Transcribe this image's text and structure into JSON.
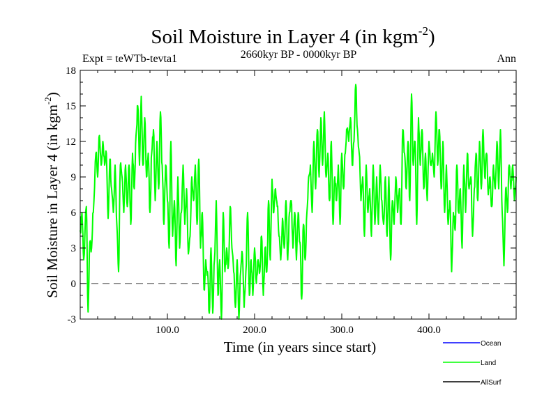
{
  "chart_data": {
    "type": "line",
    "title": "Soil Moisture in Layer 4 (in kgm",
    "title_sup": "-2",
    "title_close": ")",
    "subtitle": "2660kyr BP - 0000kyr BP",
    "expt_label": "Expt = teWTb-tevta1",
    "season_label": "Ann",
    "xlabel": "Time (in years since start)",
    "ylabel": "Soil Moisture in Layer 4 (in kgm",
    "ylabel_sup": "-2",
    "ylabel_close": ")",
    "xlim": [
      0,
      500
    ],
    "ylim": [
      -3,
      18
    ],
    "xticks": [
      100,
      200,
      300,
      400
    ],
    "xtick_labels": [
      "100.0",
      "200.0",
      "300.0",
      "400.0"
    ],
    "yticks": [
      -3,
      0,
      3,
      6,
      9,
      12,
      15,
      18
    ],
    "ytick_labels": [
      "-3",
      "0",
      "3",
      "6",
      "9",
      "12",
      "15",
      "18"
    ],
    "reference_line": 0,
    "legend": [
      {
        "name": "Ocean",
        "color": "#0000ff"
      },
      {
        "name": "Land",
        "color": "#00ff00"
      },
      {
        "name": "AllSurf",
        "color": "#000000"
      }
    ],
    "series": [
      {
        "name": "Land",
        "color": "#00ff00",
        "anchors": [
          [
            0,
            4.5
          ],
          [
            2,
            6
          ],
          [
            4,
            2
          ],
          [
            7,
            6.5
          ],
          [
            9,
            -2.4
          ],
          [
            11,
            3.5
          ],
          [
            13,
            3
          ],
          [
            15,
            6
          ],
          [
            18,
            11
          ],
          [
            20,
            9
          ],
          [
            22,
            12.5
          ],
          [
            24,
            10
          ],
          [
            26,
            12
          ],
          [
            28,
            10
          ],
          [
            30,
            11
          ],
          [
            32,
            5.5
          ],
          [
            34,
            10.5
          ],
          [
            36,
            8
          ],
          [
            38,
            6
          ],
          [
            40,
            10
          ],
          [
            42,
            5
          ],
          [
            44,
            1
          ],
          [
            46,
            10
          ],
          [
            48,
            9
          ],
          [
            50,
            6
          ],
          [
            52,
            10
          ],
          [
            54,
            6.5
          ],
          [
            56,
            10
          ],
          [
            58,
            5
          ],
          [
            60,
            11
          ],
          [
            62,
            8
          ],
          [
            64,
            12.5
          ],
          [
            66,
            15
          ],
          [
            68,
            10
          ],
          [
            70,
            15.8
          ],
          [
            72,
            10
          ],
          [
            74,
            14
          ],
          [
            76,
            9
          ],
          [
            78,
            11
          ],
          [
            80,
            6
          ],
          [
            82,
            11
          ],
          [
            84,
            13
          ],
          [
            86,
            7
          ],
          [
            88,
            12
          ],
          [
            90,
            8
          ],
          [
            92,
            14.5
          ],
          [
            94,
            10
          ],
          [
            96,
            5
          ],
          [
            98,
            10
          ],
          [
            100,
            7
          ],
          [
            102,
            3
          ],
          [
            104,
            12
          ],
          [
            106,
            4
          ],
          [
            108,
            7
          ],
          [
            110,
            1.5
          ],
          [
            112,
            9
          ],
          [
            114,
            3
          ],
          [
            116,
            6
          ],
          [
            118,
            10
          ],
          [
            120,
            5
          ],
          [
            122,
            8
          ],
          [
            124,
            2.5
          ],
          [
            126,
            4
          ],
          [
            128,
            9
          ],
          [
            130,
            7
          ],
          [
            132,
            10
          ],
          [
            134,
            5
          ],
          [
            136,
            10.5
          ],
          [
            138,
            3
          ],
          [
            140,
            6
          ],
          [
            142,
            -0.5
          ],
          [
            144,
            2
          ],
          [
            146,
            1
          ],
          [
            148,
            -2.5
          ],
          [
            150,
            3
          ],
          [
            152,
            -2.5
          ],
          [
            154,
            2
          ],
          [
            156,
            7
          ],
          [
            158,
            -1
          ],
          [
            160,
            2
          ],
          [
            162,
            -3
          ],
          [
            164,
            6
          ],
          [
            166,
            1
          ],
          [
            168,
            3
          ],
          [
            170,
            1.5
          ],
          [
            172,
            6.5
          ],
          [
            174,
            3
          ],
          [
            176,
            1
          ],
          [
            178,
            -2
          ],
          [
            180,
            2
          ],
          [
            182,
            -3
          ],
          [
            184,
            1
          ],
          [
            186,
            2.5
          ],
          [
            188,
            -2
          ],
          [
            190,
            1
          ],
          [
            192,
            6
          ],
          [
            194,
            -1
          ],
          [
            196,
            2
          ],
          [
            198,
            -1
          ],
          [
            200,
            3
          ],
          [
            202,
            0
          ],
          [
            204,
            2
          ],
          [
            206,
            1
          ],
          [
            208,
            4
          ],
          [
            210,
            -1
          ],
          [
            212,
            3
          ],
          [
            214,
            1
          ],
          [
            216,
            7
          ],
          [
            218,
            2
          ],
          [
            220,
            8.8
          ],
          [
            222,
            6
          ],
          [
            224,
            8
          ],
          [
            226,
            6.5
          ],
          [
            228,
            4
          ],
          [
            230,
            2
          ],
          [
            232,
            5.5
          ],
          [
            234,
            3
          ],
          [
            236,
            7
          ],
          [
            238,
            2
          ],
          [
            240,
            6
          ],
          [
            242,
            7
          ],
          [
            244,
            3
          ],
          [
            246,
            6
          ],
          [
            248,
            2
          ],
          [
            250,
            6
          ],
          [
            252,
            3.5
          ],
          [
            254,
            -1.3
          ],
          [
            256,
            5
          ],
          [
            258,
            2
          ],
          [
            260,
            6
          ],
          [
            262,
            9
          ],
          [
            264,
            10
          ],
          [
            266,
            6
          ],
          [
            268,
            12
          ],
          [
            270,
            8
          ],
          [
            272,
            13
          ],
          [
            274,
            9
          ],
          [
            276,
            14
          ],
          [
            278,
            10
          ],
          [
            280,
            14.5
          ],
          [
            282,
            9
          ],
          [
            284,
            11
          ],
          [
            286,
            7
          ],
          [
            288,
            12
          ],
          [
            290,
            5
          ],
          [
            292,
            9
          ],
          [
            294,
            7
          ],
          [
            296,
            10
          ],
          [
            298,
            5
          ],
          [
            300,
            11
          ],
          [
            302,
            8
          ],
          [
            304,
            11
          ],
          [
            306,
            13
          ],
          [
            308,
            12
          ],
          [
            310,
            14
          ],
          [
            312,
            10
          ],
          [
            314,
            12
          ],
          [
            316,
            16.8
          ],
          [
            318,
            13
          ],
          [
            320,
            11
          ],
          [
            322,
            7
          ],
          [
            324,
            9
          ],
          [
            326,
            4
          ],
          [
            328,
            10
          ],
          [
            330,
            6
          ],
          [
            332,
            8
          ],
          [
            334,
            4
          ],
          [
            336,
            10
          ],
          [
            338,
            5
          ],
          [
            340,
            9
          ],
          [
            342,
            5
          ],
          [
            344,
            10
          ],
          [
            346,
            7
          ],
          [
            348,
            5
          ],
          [
            350,
            9
          ],
          [
            352,
            4
          ],
          [
            354,
            9
          ],
          [
            356,
            2
          ],
          [
            358,
            7
          ],
          [
            360,
            5
          ],
          [
            362,
            9
          ],
          [
            364,
            6
          ],
          [
            366,
            8
          ],
          [
            368,
            5
          ],
          [
            370,
            13
          ],
          [
            372,
            11
          ],
          [
            374,
            8
          ],
          [
            376,
            12
          ],
          [
            378,
            7
          ],
          [
            380,
            16
          ],
          [
            382,
            10
          ],
          [
            384,
            12
          ],
          [
            386,
            5
          ],
          [
            388,
            14
          ],
          [
            390,
            10
          ],
          [
            392,
            13
          ],
          [
            394,
            8
          ],
          [
            396,
            11
          ],
          [
            398,
            7
          ],
          [
            400,
            12
          ],
          [
            402,
            10
          ],
          [
            404,
            11
          ],
          [
            406,
            9
          ],
          [
            408,
            14.5
          ],
          [
            410,
            10
          ],
          [
            412,
            13
          ],
          [
            414,
            8
          ],
          [
            416,
            12
          ],
          [
            418,
            6
          ],
          [
            420,
            10
          ],
          [
            422,
            5
          ],
          [
            424,
            7
          ],
          [
            426,
            1
          ],
          [
            428,
            6
          ],
          [
            430,
            4.5
          ],
          [
            432,
            10
          ],
          [
            434,
            6
          ],
          [
            436,
            8
          ],
          [
            438,
            3
          ],
          [
            440,
            10
          ],
          [
            442,
            6
          ],
          [
            444,
            11
          ],
          [
            446,
            8
          ],
          [
            448,
            9
          ],
          [
            450,
            4
          ],
          [
            452,
            8
          ],
          [
            454,
            11
          ],
          [
            456,
            7
          ],
          [
            458,
            12
          ],
          [
            460,
            8
          ],
          [
            462,
            13
          ],
          [
            464,
            9
          ],
          [
            466,
            11
          ],
          [
            468,
            7.5
          ],
          [
            470,
            9
          ],
          [
            472,
            6.5
          ],
          [
            474,
            10
          ],
          [
            476,
            8
          ],
          [
            478,
            12
          ],
          [
            480,
            8
          ],
          [
            482,
            13
          ],
          [
            484,
            6
          ],
          [
            486,
            1.5
          ],
          [
            488,
            8
          ],
          [
            490,
            6
          ],
          [
            492,
            10
          ],
          [
            494,
            8
          ],
          [
            496,
            10
          ],
          [
            498,
            7
          ],
          [
            500,
            9
          ]
        ]
      }
    ]
  }
}
